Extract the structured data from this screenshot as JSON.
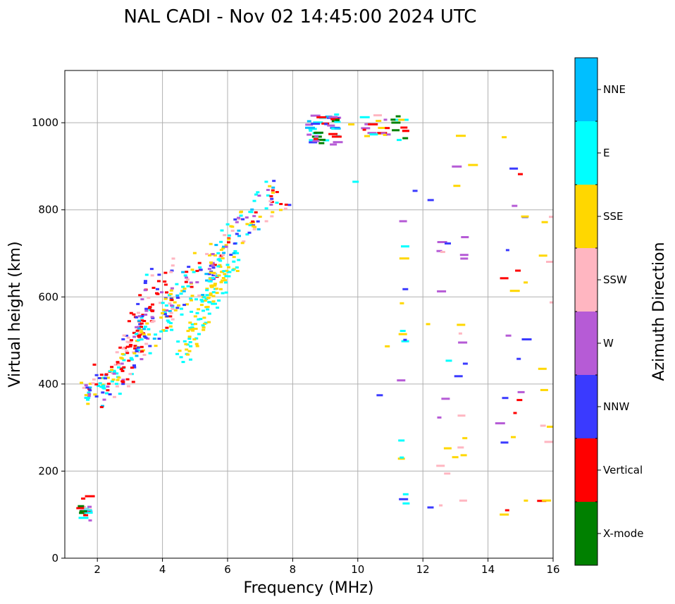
{
  "chart_data": {
    "type": "scatter",
    "title": "NAL CADI - Nov 02 14:45:00 2024 UTC",
    "xlabel": "Frequency (MHz)",
    "ylabel": "Virtual height (km)",
    "xlim": [
      1,
      16
    ],
    "ylim": [
      0,
      1120
    ],
    "xticks": [
      2,
      4,
      6,
      8,
      10,
      12,
      14,
      16
    ],
    "yticks": [
      0,
      200,
      400,
      600,
      800,
      1000
    ],
    "grid": true,
    "colorbar": {
      "label": "Azimuth Direction",
      "categories": [
        {
          "name": "X-mode",
          "color": "#008000"
        },
        {
          "name": "Vertical",
          "color": "#ff0000"
        },
        {
          "name": "NNW",
          "color": "#3a3aff"
        },
        {
          "name": "W",
          "color": "#b65bd6"
        },
        {
          "name": "SSW",
          "color": "#ffb6c1"
        },
        {
          "name": "SSE",
          "color": "#ffd700"
        },
        {
          "name": "E",
          "color": "#00ffff"
        },
        {
          "name": "NNE",
          "color": "#00bfff"
        }
      ]
    },
    "clusters": [
      {
        "name": "low-layer-echoes",
        "x": [
          1.45,
          1.8
        ],
        "y": [
          85,
          145
        ],
        "count": 20,
        "colors": [
          0,
          1,
          2,
          6,
          4,
          3
        ]
      },
      {
        "name": "f-trace-vertical",
        "x": [
          2.6,
          4.2
        ],
        "y": [
          400,
          690
        ],
        "count": 110,
        "colors": [
          1,
          1,
          1,
          2,
          6,
          4,
          3
        ],
        "band": true,
        "x0": 2.6,
        "y0": 400,
        "x1": 4.1,
        "y1": 670,
        "spread": 0.35
      },
      {
        "name": "f-trace-main",
        "x": [
          1.5,
          8.0
        ],
        "y": [
          350,
          880
        ],
        "count": 320,
        "colors": [
          6,
          6,
          5,
          5,
          2,
          3,
          1,
          4,
          7
        ],
        "band": true,
        "x0": 1.6,
        "y0": 360,
        "x1": 7.5,
        "y1": 840,
        "spread": 0.45
      },
      {
        "name": "f-trace-upper-cyan",
        "x": [
          4.8,
          6.3
        ],
        "y": [
          480,
          720
        ],
        "count": 120,
        "colors": [
          6,
          6,
          5,
          5
        ],
        "band": true,
        "x0": 4.6,
        "y0": 470,
        "x1": 6.2,
        "y1": 700,
        "spread": 0.25
      },
      {
        "name": "high-cluster-8-9",
        "x": [
          8.5,
          9.4
        ],
        "y": [
          950,
          1020
        ],
        "count": 45,
        "colors": [
          7,
          2,
          1,
          0,
          3,
          6
        ]
      },
      {
        "name": "high-cluster-10-11",
        "x": [
          10.2,
          11.5
        ],
        "y": [
          950,
          1020
        ],
        "count": 30,
        "colors": [
          3,
          4,
          1,
          0,
          6,
          5
        ]
      },
      {
        "name": "column-11-4",
        "x": [
          11.3,
          11.5
        ],
        "y": [
          120,
          780
        ],
        "count": 16,
        "colors": [
          6,
          5,
          2,
          3
        ]
      },
      {
        "name": "column-12-9",
        "x": [
          12.5,
          13.4
        ],
        "y": [
          85,
          970
        ],
        "count": 26,
        "colors": [
          5,
          3,
          2,
          4
        ]
      },
      {
        "name": "column-14-6",
        "x": [
          14.3,
          15.2
        ],
        "y": [
          85,
          1010
        ],
        "count": 22,
        "colors": [
          5,
          2,
          1,
          3
        ]
      },
      {
        "name": "column-15-8",
        "x": [
          15.6,
          16.0
        ],
        "y": [
          110,
          830
        ],
        "count": 12,
        "colors": [
          1,
          5,
          6,
          4
        ]
      },
      {
        "name": "scattered",
        "x": [
          9.0,
          16.0
        ],
        "y": [
          80,
          1000
        ],
        "count": 14,
        "colors": [
          5,
          6,
          2,
          3,
          4
        ]
      }
    ],
    "marks_legend_note": "Markers are short horizontal dashes colored by azimuth category"
  }
}
